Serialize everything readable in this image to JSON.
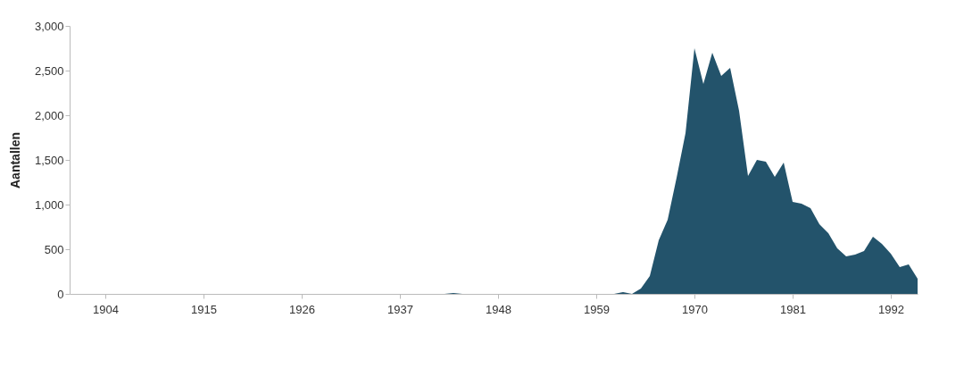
{
  "chart_data": {
    "type": "area",
    "ylabel": "Aantallen",
    "x": [
      1900,
      1942,
      1943,
      1944,
      1959,
      1960,
      1961,
      1962,
      1963,
      1964,
      1965,
      1966,
      1967,
      1968,
      1969,
      1970,
      1971,
      1972,
      1973,
      1974,
      1975,
      1976,
      1977,
      1978,
      1979,
      1980,
      1981,
      1982,
      1983,
      1984,
      1985,
      1986,
      1987,
      1988,
      1989,
      1990,
      1991,
      1992,
      1993,
      1994,
      1995
    ],
    "series": [
      {
        "color": "#23536b",
        "values": [
          0,
          0,
          10,
          0,
          0,
          0,
          0,
          20,
          0,
          60,
          200,
          600,
          830,
          1300,
          1800,
          2750,
          2350,
          2700,
          2440,
          2530,
          2050,
          1320,
          1500,
          1480,
          1310,
          1470,
          1030,
          1010,
          960,
          780,
          680,
          510,
          420,
          440,
          480,
          640,
          560,
          450,
          300,
          330,
          170
        ]
      }
    ],
    "xlim": [
      1900,
      1995
    ],
    "xticks": [
      1904,
      1915,
      1926,
      1937,
      1948,
      1959,
      1970,
      1981,
      1992
    ],
    "ylim": [
      0,
      3000
    ],
    "yticks": [
      0,
      500,
      {
        "value": 1000,
        "label": "1,000"
      },
      {
        "value": 1500,
        "label": "1,500"
      },
      {
        "value": 2000,
        "label": "2,000"
      },
      {
        "value": 2500,
        "label": "2,500"
      },
      {
        "value": 3000,
        "label": "3,000"
      }
    ],
    "grid": false
  }
}
